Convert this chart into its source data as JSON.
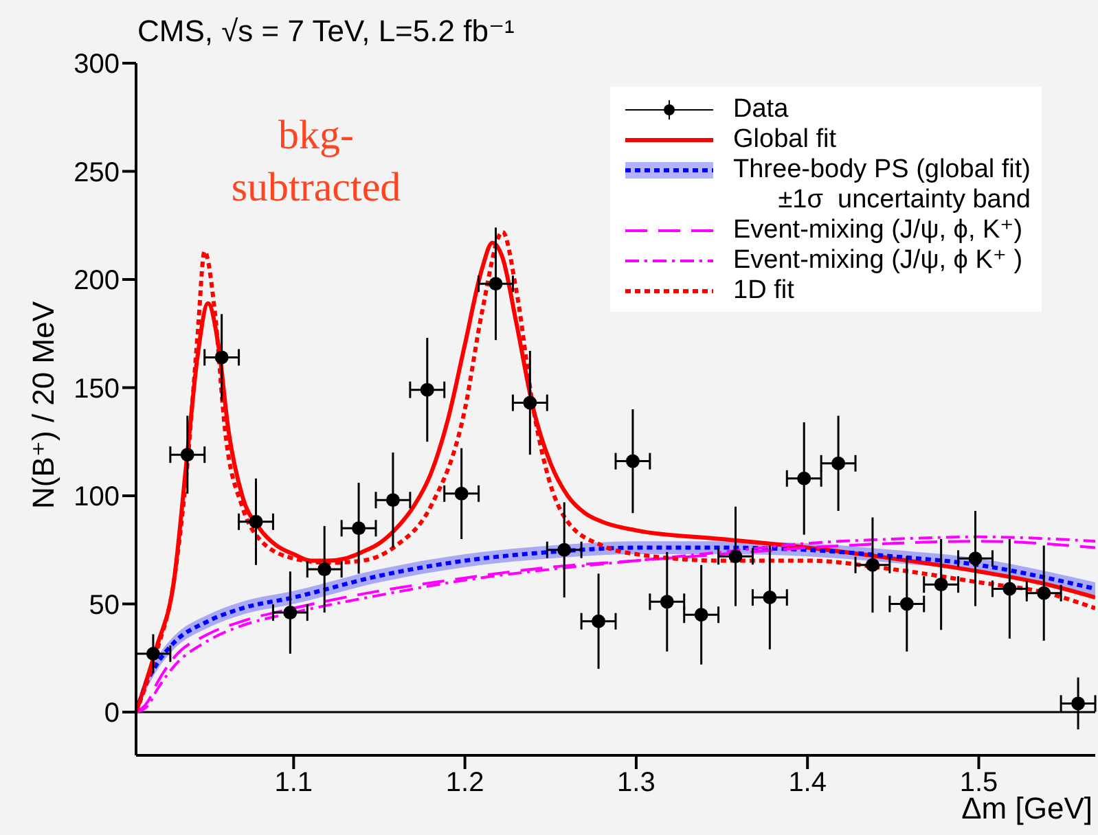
{
  "chart_data": {
    "type": "line",
    "title": "CMS, √s = 7 TeV, L=5.2 fb⁻¹",
    "xlabel": "Δm [GeV]",
    "ylabel": "N(B⁺) / 20 MeV",
    "annotations": [
      "bkg-\nsubtracted"
    ],
    "xlim": [
      1.008,
      1.568
    ],
    "xticks": [
      1.1,
      1.2,
      1.3,
      1.4,
      1.5
    ],
    "ylim": [
      -20,
      300
    ],
    "yticks": [
      0,
      50,
      100,
      150,
      200,
      250,
      300
    ],
    "legend": "top right",
    "ref_lines": [
      {
        "axis": "y",
        "value": 0,
        "color": "#000000"
      }
    ],
    "series": [
      {
        "name": "Data",
        "type": "scatter",
        "color": "#000000",
        "marker": "circle",
        "x": [
          1.018,
          1.038,
          1.058,
          1.078,
          1.098,
          1.118,
          1.138,
          1.158,
          1.178,
          1.198,
          1.218,
          1.238,
          1.258,
          1.278,
          1.298,
          1.318,
          1.338,
          1.358,
          1.378,
          1.398,
          1.418,
          1.438,
          1.458,
          1.478,
          1.498,
          1.518,
          1.538,
          1.558
        ],
        "values": [
          27,
          119,
          164,
          88,
          46,
          66,
          85,
          98,
          149,
          101,
          198,
          143,
          75,
          42,
          116,
          51,
          45,
          72,
          53,
          108,
          115,
          68,
          50,
          59,
          71,
          57,
          55,
          4
        ],
        "errors": [
          9,
          18,
          20,
          20,
          19,
          20,
          21,
          22,
          24,
          21,
          26,
          24,
          22,
          22,
          24,
          23,
          23,
          23,
          24,
          26,
          22,
          22,
          22,
          21,
          22,
          23,
          22,
          12
        ],
        "xerrors": [
          0.01,
          0.01,
          0.01,
          0.01,
          0.01,
          0.01,
          0.01,
          0.01,
          0.01,
          0.01,
          0.01,
          0.01,
          0.01,
          0.01,
          0.01,
          0.01,
          0.01,
          0.01,
          0.01,
          0.01,
          0.01,
          0.01,
          0.01,
          0.01,
          0.01,
          0.01,
          0.01,
          0.01
        ]
      },
      {
        "name": "Global fit",
        "color": "#ff0000",
        "line_style": "solid",
        "x": [
          1.008,
          1.02,
          1.03,
          1.038,
          1.044,
          1.05,
          1.056,
          1.062,
          1.07,
          1.08,
          1.09,
          1.1,
          1.11,
          1.12,
          1.13,
          1.14,
          1.15,
          1.16,
          1.17,
          1.18,
          1.19,
          1.2,
          1.21,
          1.216,
          1.222,
          1.23,
          1.24,
          1.25,
          1.26,
          1.27,
          1.28,
          1.3,
          1.35,
          1.4,
          1.45,
          1.5,
          1.54,
          1.568
        ],
        "values": [
          0,
          30,
          60,
          120,
          165,
          189,
          170,
          130,
          100,
          85,
          77,
          73,
          70,
          70,
          71,
          74,
          78,
          85,
          95,
          110,
          135,
          170,
          205,
          217,
          210,
          180,
          140,
          115,
          100,
          92,
          88,
          84,
          80,
          76,
          71,
          65,
          59,
          53
        ]
      },
      {
        "name": "Three-body PS (global fit)\n±1σ  uncertainty band",
        "color": "#0000ff",
        "line_style": "dotted",
        "x": [
          1.008,
          1.015,
          1.02,
          1.03,
          1.05,
          1.07,
          1.1,
          1.15,
          1.2,
          1.25,
          1.3,
          1.35,
          1.4,
          1.45,
          1.5,
          1.54,
          1.568
        ],
        "values": [
          0,
          15,
          22,
          32,
          42,
          48,
          53,
          63,
          70,
          74,
          76,
          76,
          75,
          72,
          68,
          62,
          57
        ],
        "lower": [
          0,
          12,
          19,
          29,
          39,
          45,
          50,
          60,
          67,
          71,
          73,
          73,
          72,
          69,
          65,
          59,
          54
        ],
        "upper": [
          0,
          18,
          25,
          35,
          45,
          51,
          56,
          66,
          73,
          77,
          79,
          79,
          78,
          75,
          71,
          65,
          60
        ]
      },
      {
        "name": "Event-mixing (J/ψ, ϕ, K⁺)",
        "color": "#ff00ff",
        "line_style": "dashed",
        "x": [
          1.008,
          1.015,
          1.02,
          1.03,
          1.05,
          1.07,
          1.1,
          1.15,
          1.2,
          1.25,
          1.3,
          1.35,
          1.4,
          1.45,
          1.5,
          1.568
        ],
        "values": [
          0,
          5,
          13,
          25,
          36,
          42,
          48,
          56,
          62,
          67,
          70,
          73,
          76,
          78,
          79,
          76
        ]
      },
      {
        "name": "Event-mixing (J/ψ, ϕ K⁺ )",
        "color": "#ff00ff",
        "line_style": "dashdot",
        "x": [
          1.008,
          1.015,
          1.02,
          1.03,
          1.05,
          1.07,
          1.1,
          1.15,
          1.2,
          1.25,
          1.3,
          1.35,
          1.4,
          1.45,
          1.5,
          1.568
        ],
        "values": [
          0,
          3,
          10,
          21,
          33,
          40,
          46,
          54,
          61,
          66,
          70,
          74,
          78,
          80,
          81,
          79
        ]
      },
      {
        "name": "1D fit",
        "color": "#ff0000",
        "line_style": "dotted",
        "x": [
          1.008,
          1.02,
          1.03,
          1.038,
          1.044,
          1.048,
          1.054,
          1.06,
          1.07,
          1.08,
          1.1,
          1.12,
          1.14,
          1.16,
          1.18,
          1.2,
          1.21,
          1.222,
          1.23,
          1.24,
          1.25,
          1.26,
          1.28,
          1.3,
          1.35,
          1.4,
          1.45,
          1.5,
          1.54,
          1.568
        ],
        "values": [
          0,
          28,
          60,
          115,
          175,
          213,
          185,
          130,
          95,
          80,
          71,
          69,
          70,
          77,
          95,
          140,
          185,
          222,
          195,
          140,
          105,
          88,
          77,
          73,
          70,
          70,
          66,
          60,
          55,
          48
        ]
      }
    ]
  }
}
